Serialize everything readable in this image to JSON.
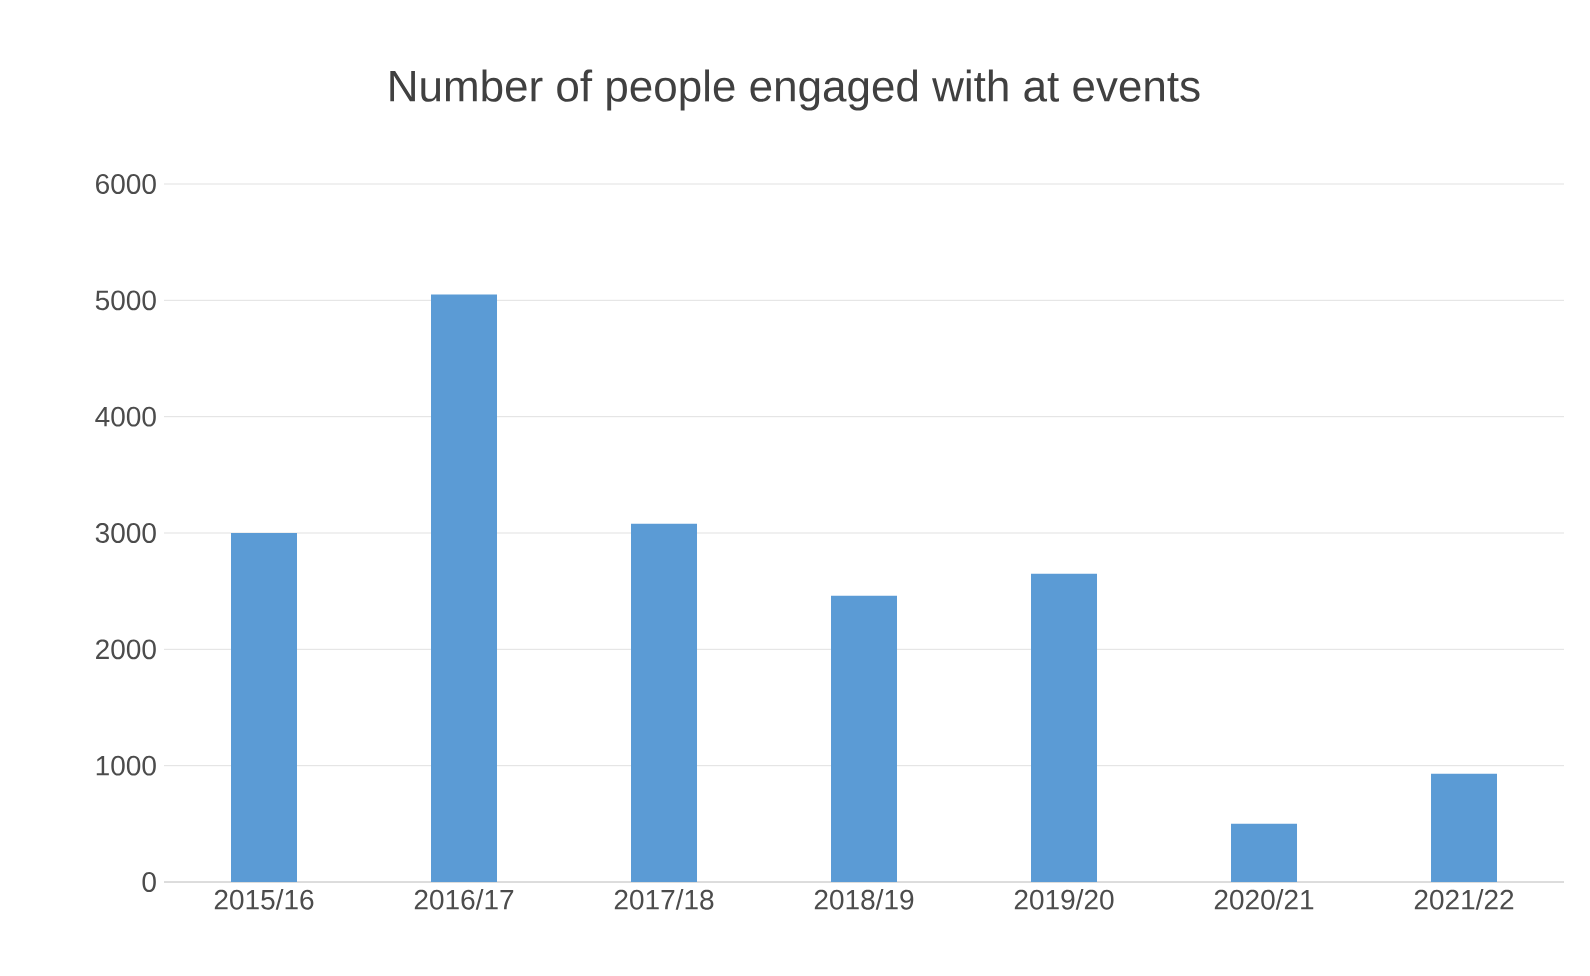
{
  "chart_data": {
    "type": "bar",
    "title": "Number of people engaged with at events",
    "categories": [
      "2015/16",
      "2016/17",
      "2017/18",
      "2018/19",
      "2019/20",
      "2020/21",
      "2021/22"
    ],
    "values": [
      3000,
      5050,
      3080,
      2460,
      2650,
      500,
      930
    ],
    "color": "#5b9bd5",
    "ylim": [
      0,
      6000
    ],
    "yticks": [
      0,
      1000,
      2000,
      3000,
      4000,
      5000,
      6000
    ],
    "grid": "y"
  }
}
